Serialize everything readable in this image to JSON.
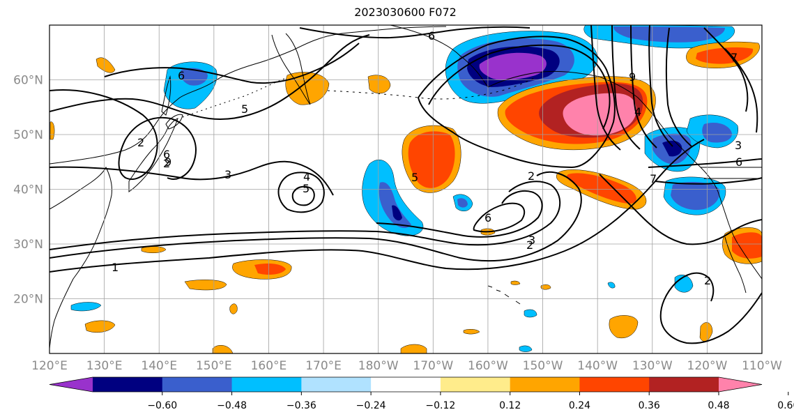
{
  "title": "2023030600 F072",
  "map": {
    "lon_range": [
      120,
      250
    ],
    "lat_range": [
      10,
      70
    ],
    "lon_tick_labels": [
      "120°E",
      "130°E",
      "140°E",
      "150°E",
      "160°E",
      "170°E",
      "180°W",
      "170°W",
      "160°W",
      "150°W",
      "140°W",
      "130°W",
      "120°W",
      "110°W"
    ],
    "lat_tick_labels": [
      "20°N",
      "30°N",
      "40°N",
      "50°N",
      "60°N"
    ],
    "gridlines": true
  },
  "colorbar": {
    "tick_labels": [
      "−0.60",
      "−0.48",
      "−0.36",
      "−0.24",
      "−0.12",
      "0.12",
      "0.24",
      "0.36",
      "0.48",
      "0.60"
    ],
    "colors": [
      "#9932cc",
      "#000080",
      "#3a5fcd",
      "#00bfff",
      "#b0e2ff",
      "#ffffff",
      "#ffec8b",
      "#ffa500",
      "#ff4500",
      "#b22222",
      "#ff82ab"
    ]
  },
  "contour_labels": [
    "1",
    "2",
    "2",
    "2",
    "2",
    "2",
    "3",
    "3",
    "3",
    "4",
    "4",
    "5",
    "5",
    "5",
    "6",
    "6",
    "6",
    "6",
    "6",
    "7",
    "7",
    "9",
    "9"
  ]
}
